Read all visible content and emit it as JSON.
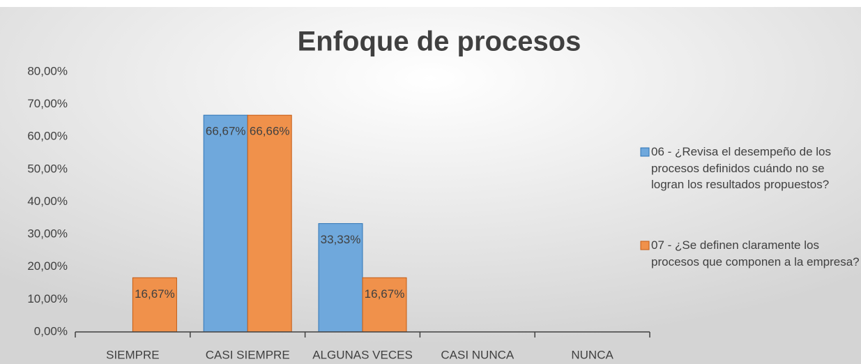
{
  "chart_data": {
    "type": "bar",
    "title": "Enfoque de procesos",
    "categories": [
      "SIEMPRE",
      "CASI SIEMPRE",
      "ALGUNAS VECES",
      "CASI NUNCA",
      "NUNCA"
    ],
    "series": [
      {
        "name": "06 - ¿Revisa el desempeño de los procesos definidos cuándo no se logran los resultados propuestos?",
        "color": "#6fa8dc",
        "values": [
          0,
          66.67,
          33.33,
          0,
          0
        ],
        "value_labels": [
          null,
          "66,67%",
          "33,33%",
          null,
          null
        ]
      },
      {
        "name": "07 - ¿Se definen claramente los procesos que componen a la empresa?",
        "color": "#f0914b",
        "values": [
          16.67,
          66.66,
          16.67,
          0,
          0
        ],
        "value_labels": [
          "16,67%",
          "66,66%",
          "16,67%",
          null,
          null
        ]
      }
    ],
    "ylim": [
      0,
      80
    ],
    "yticks": [
      {
        "value": 0,
        "label": "0,00%"
      },
      {
        "value": 10,
        "label": "10,00%"
      },
      {
        "value": 20,
        "label": "20,00%"
      },
      {
        "value": 30,
        "label": "30,00%"
      },
      {
        "value": 40,
        "label": "40,00%"
      },
      {
        "value": 50,
        "label": "50,00%"
      },
      {
        "value": 60,
        "label": "60,00%"
      },
      {
        "value": 70,
        "label": "70,00%"
      },
      {
        "value": 80,
        "label": "80,00%"
      }
    ],
    "grid": false,
    "legend": "right"
  }
}
